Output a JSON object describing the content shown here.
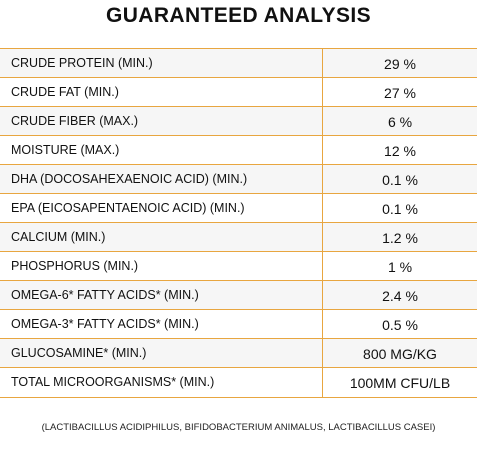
{
  "title": "GUARANTEED ANALYSIS",
  "rows": [
    {
      "label": "CRUDE PROTEIN (MIN.)",
      "value": "29 %"
    },
    {
      "label": "CRUDE FAT (MIN.)",
      "value": "27 %"
    },
    {
      "label": "CRUDE FIBER (MAX.)",
      "value": "6 %"
    },
    {
      "label": "MOISTURE (MAX.)",
      "value": "12 %"
    },
    {
      "label": "DHA (DOCOSAHEXAENOIC ACID) (MIN.)",
      "value": "0.1 %"
    },
    {
      "label": "EPA (EICOSAPENTAENOIC ACID) (MIN.)",
      "value": "0.1 %"
    },
    {
      "label": "CALCIUM (MIN.)",
      "value": "1.2 %"
    },
    {
      "label": "PHOSPHORUS (MIN.)",
      "value": "1 %"
    },
    {
      "label": "OMEGA-6* FATTY ACIDS* (MIN.)",
      "value": "2.4 %"
    },
    {
      "label": "OMEGA-3* FATTY ACIDS* (MIN.)",
      "value": "0.5 %"
    },
    {
      "label": "GLUCOSAMINE* (MIN.)",
      "value": "800 MG/KG"
    },
    {
      "label": "TOTAL MICROORGANISMS* (MIN.)",
      "value": "100MM CFU/LB"
    }
  ],
  "footnote": "(LACTIBACILLUS ACIDIPHILUS, BIFIDOBACTERIUM ANIMALUS, LACTIBACILLUS CASEI)",
  "colors": {
    "border": "#e8a640",
    "stripe": "#f6f6f6",
    "text": "#111111"
  }
}
